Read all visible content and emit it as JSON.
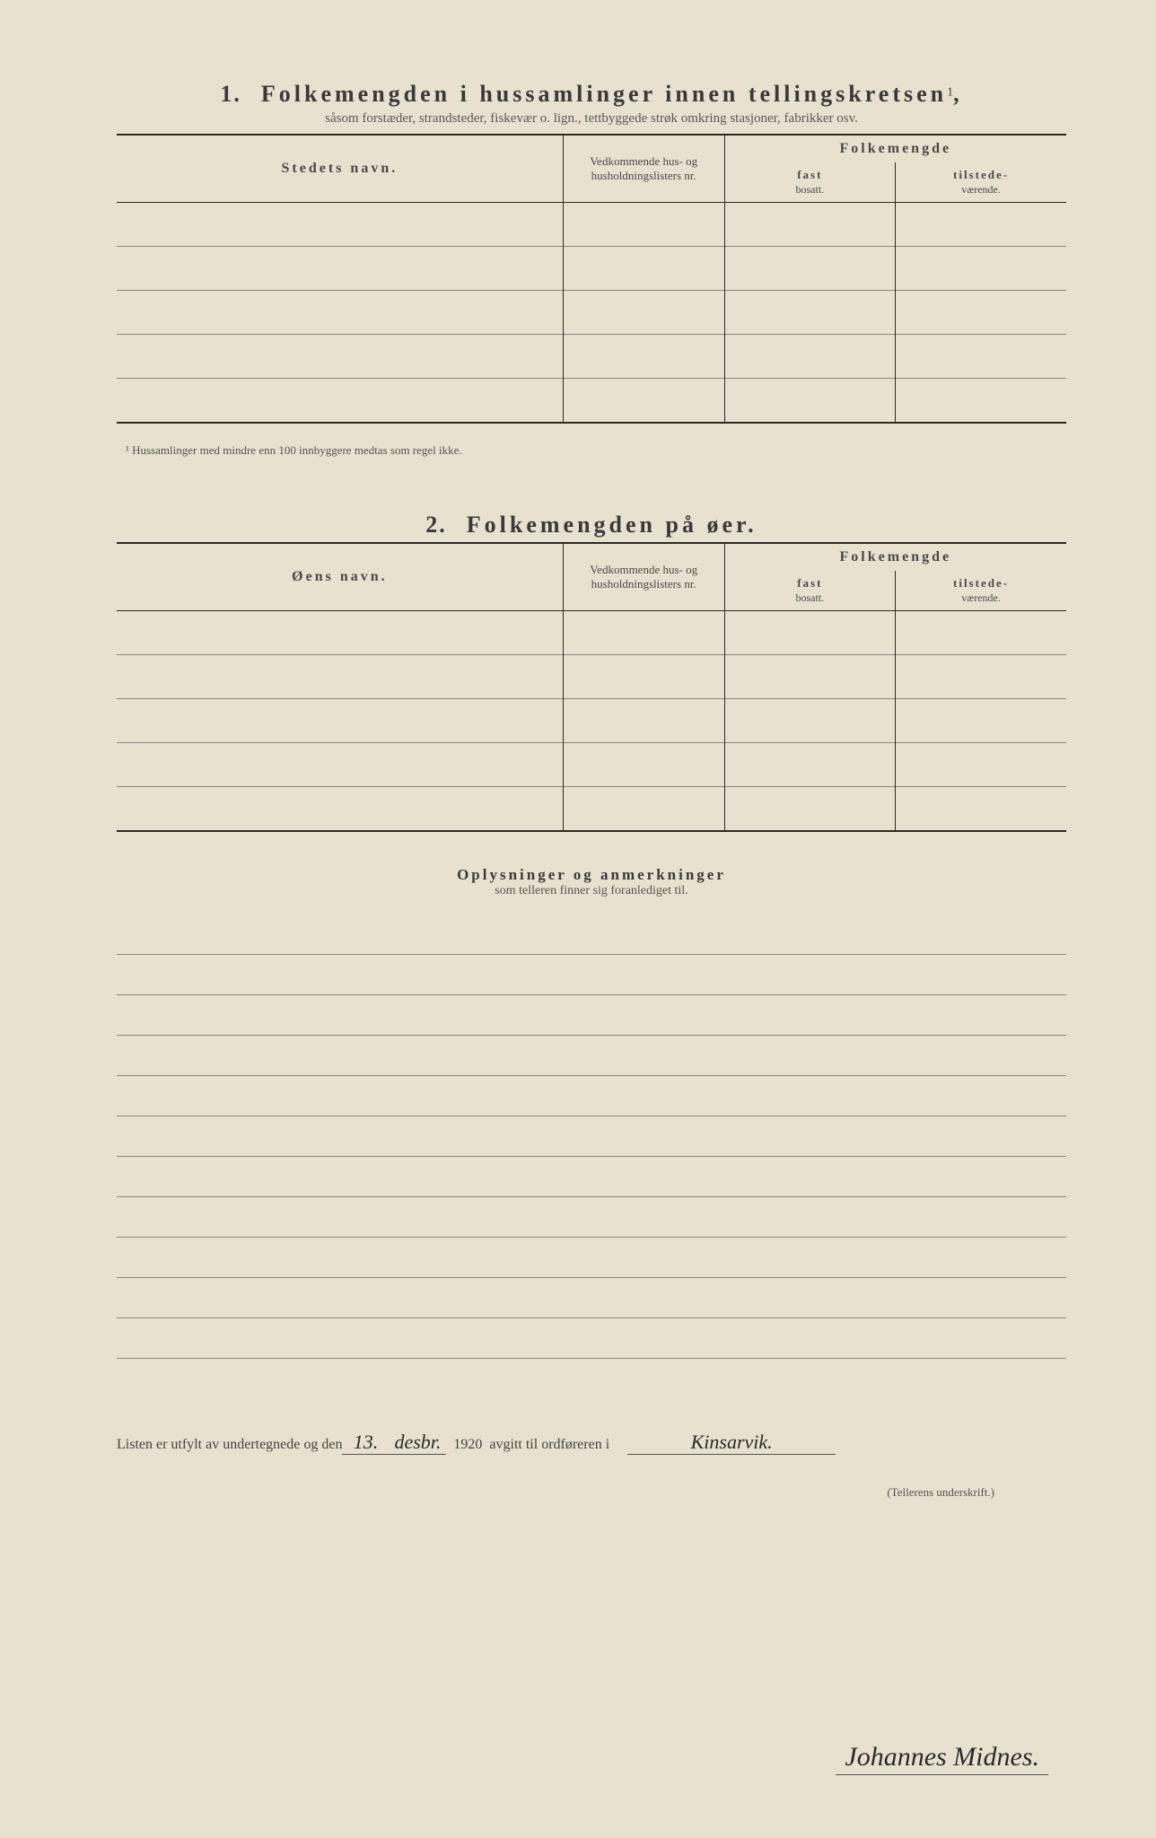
{
  "section1": {
    "number": "1.",
    "title": "Folkemengden i hussamlinger innen tellingskretsen",
    "title_sup": "1",
    "title_comma": ",",
    "subtitle": "såsom forstæder, strandsteder, fiskevær o. lign., tettbyggede strøk omkring stasjoner, fabrikker osv.",
    "col_name": "Stedets navn.",
    "col_ref": "Vedkommende hus- og husholdningslisters nr.",
    "col_pop": "Folkemengde",
    "col_fast_label": "fast",
    "col_fast_sub": "bosatt.",
    "col_til_label": "tilstede-",
    "col_til_sub": "værende.",
    "row_count": 5,
    "footnote": "¹ Hussamlinger med mindre enn 100 innbyggere medtas som regel ikke."
  },
  "section2": {
    "number": "2.",
    "title": "Folkemengden på øer.",
    "col_name": "Øens navn.",
    "col_ref": "Vedkommende hus- og husholdningslisters nr.",
    "col_pop": "Folkemengde",
    "col_fast_label": "fast",
    "col_fast_sub": "bosatt.",
    "col_til_label": "tilstede-",
    "col_til_sub": "værende.",
    "row_count": 5
  },
  "remarks": {
    "title": "Oplysninger og anmerkninger",
    "subtitle": "som telleren finner sig foranlediget til.",
    "line_count": 11
  },
  "signature": {
    "prefix": "Listen er utfylt av undertegnede og den",
    "day": "13.",
    "month": "desbr.",
    "year": "1920",
    "mid": "avgitt til ordføreren i",
    "place": "Kinsarvik.",
    "name": "Johannes Midnes.",
    "under_label": "(Tellerens underskrift.)"
  },
  "colors": {
    "paper": "#e8e1d0",
    "ink": "#2a2a2a",
    "rule": "#888"
  }
}
